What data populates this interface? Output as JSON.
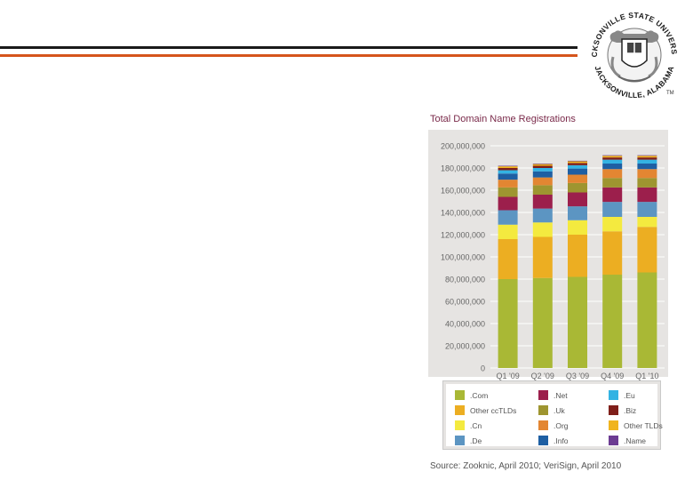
{
  "seal": {
    "top_text": "JACKSONVILLE STATE UNIVERSITY",
    "bottom_text": "JACKSONVILLE, ALABAMA"
  },
  "chart_data": {
    "type": "bar",
    "stacked": true,
    "title": "Total Domain Name Registrations",
    "categories": [
      "Q1 '09",
      "Q2 '09",
      "Q3 '09",
      "Q4 '09",
      "Q1 '10"
    ],
    "ylim": [
      0,
      200000000
    ],
    "yticks": [
      "0",
      "20,000,000",
      "40,000,000",
      "60,000,000",
      "80,000,000",
      "100,000,000",
      "120,000,000",
      "140,000,000",
      "160,000,000",
      "180,000,000",
      "200,000,000"
    ],
    "series": [
      {
        "name": ".Com",
        "color": "#a9b835",
        "values": [
          80000000,
          81000000,
          82000000,
          84000000,
          86000000
        ]
      },
      {
        "name": "Other ccTLDs",
        "color": "#ecae22",
        "values": [
          36000000,
          37000000,
          38000000,
          39000000,
          41000000
        ]
      },
      {
        "name": ".Cn",
        "color": "#f4ea3f",
        "values": [
          13000000,
          13000000,
          13000000,
          13000000,
          9000000
        ]
      },
      {
        "name": ".De",
        "color": "#5c95c2",
        "values": [
          13000000,
          12500000,
          12500000,
          13500000,
          13500000
        ]
      },
      {
        "name": ".Net",
        "color": "#9c1f4c",
        "values": [
          12000000,
          12500000,
          12500000,
          13000000,
          13000000
        ]
      },
      {
        "name": ".Uk",
        "color": "#9e9530",
        "values": [
          8500000,
          8500000,
          8500000,
          8500000,
          8500000
        ]
      },
      {
        "name": ".Org",
        "color": "#e38632",
        "values": [
          7000000,
          7000000,
          7500000,
          8000000,
          8000000
        ]
      },
      {
        "name": ".Info",
        "color": "#1e5fa3",
        "values": [
          5500000,
          5500000,
          5500000,
          5000000,
          5000000
        ]
      },
      {
        "name": ".Eu",
        "color": "#33b3e3",
        "values": [
          3000000,
          3000000,
          3000000,
          3500000,
          3500000
        ]
      },
      {
        "name": ".Biz",
        "color": "#7f1f1a",
        "values": [
          2000000,
          2000000,
          2000000,
          2000000,
          2000000
        ]
      },
      {
        "name": "Other TLDs",
        "color": "#f0b41e",
        "values": [
          1500000,
          1500000,
          1500000,
          1500000,
          1500000
        ]
      },
      {
        "name": ".Name",
        "color": "#6c3c92",
        "values": [
          500000,
          500000,
          500000,
          500000,
          500000
        ]
      }
    ],
    "legend_position": "bottom",
    "source": "Source: Zooknic, April 2010; VeriSign, April 2010"
  }
}
